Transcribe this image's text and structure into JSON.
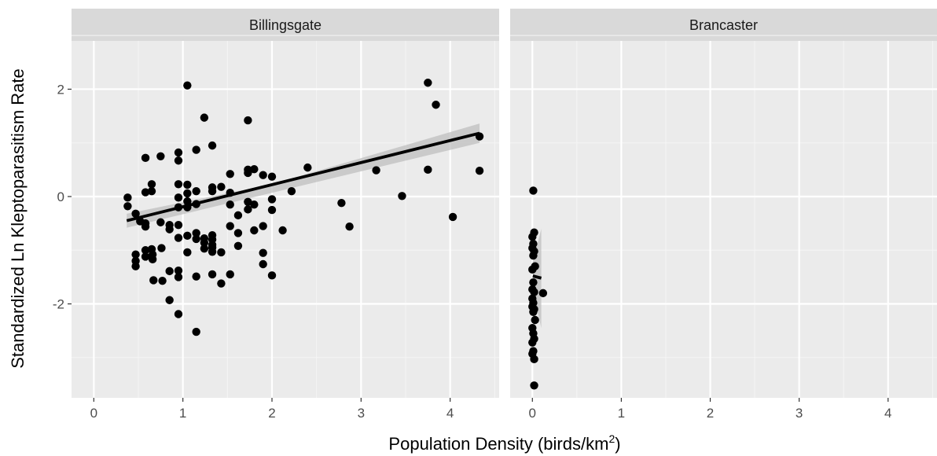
{
  "chart_data": {
    "type": "scatter",
    "facet_by": "site",
    "xlabel": "Population Density (birds/km",
    "xlabel_sup": "2",
    "xlabel_end": ")",
    "ylabel": "Standardized Ln Kleptoparasitism Rate",
    "xlim": [
      -0.25,
      4.55
    ],
    "ylim": [
      -3.75,
      2.9
    ],
    "xticks": [
      0,
      1,
      2,
      3,
      4
    ],
    "xtick_labels": [
      "0",
      "1",
      "2",
      "3",
      "4"
    ],
    "yticks": [
      2,
      0,
      -2
    ],
    "ytick_labels": [
      "2",
      "0",
      "-2"
    ],
    "grid": true,
    "panel_background": "#ebebeb",
    "strip_background": "#d9d9d9",
    "point_color": "#000000",
    "fit_color": "#000000",
    "band_color": "#bfbfbf",
    "panels": [
      {
        "name": "Billingsgate",
        "fit": {
          "x": [
            0.37,
            4.33
          ],
          "y": [
            -0.45,
            1.18
          ]
        },
        "band": {
          "x": [
            0.37,
            2.0,
            4.33
          ],
          "upper": [
            -0.32,
            0.23,
            1.36
          ],
          "lower": [
            -0.58,
            0.07,
            1.0
          ]
        },
        "points": [
          [
            0.38,
            -0.02
          ],
          [
            0.38,
            -0.18
          ],
          [
            0.47,
            -0.32
          ],
          [
            0.47,
            -1.08
          ],
          [
            0.47,
            -1.2
          ],
          [
            0.47,
            -1.3
          ],
          [
            0.52,
            -0.46
          ],
          [
            0.58,
            0.72
          ],
          [
            0.58,
            0.08
          ],
          [
            0.58,
            -0.5
          ],
          [
            0.58,
            -0.56
          ],
          [
            0.58,
            -1.0
          ],
          [
            0.58,
            -1.12
          ],
          [
            0.65,
            0.1
          ],
          [
            0.65,
            0.23
          ],
          [
            0.65,
            -0.98
          ],
          [
            0.66,
            -1.08
          ],
          [
            0.66,
            -1.17
          ],
          [
            0.67,
            -1.56
          ],
          [
            0.75,
            0.75
          ],
          [
            0.75,
            -0.48
          ],
          [
            0.76,
            -0.96
          ],
          [
            0.77,
            -1.57
          ],
          [
            0.85,
            -0.53
          ],
          [
            0.85,
            -0.61
          ],
          [
            0.85,
            -1.39
          ],
          [
            0.85,
            -1.93
          ],
          [
            0.95,
            0.82
          ],
          [
            0.95,
            0.67
          ],
          [
            0.95,
            0.23
          ],
          [
            0.95,
            -0.02
          ],
          [
            0.95,
            -0.2
          ],
          [
            0.95,
            -0.53
          ],
          [
            0.95,
            -0.77
          ],
          [
            0.95,
            -1.38
          ],
          [
            0.95,
            -1.5
          ],
          [
            0.95,
            -2.19
          ],
          [
            1.05,
            2.07
          ],
          [
            1.05,
            0.22
          ],
          [
            1.05,
            0.06
          ],
          [
            1.05,
            -0.09
          ],
          [
            1.05,
            -0.2
          ],
          [
            1.05,
            -0.73
          ],
          [
            1.05,
            -1.04
          ],
          [
            1.15,
            0.87
          ],
          [
            1.15,
            0.1
          ],
          [
            1.15,
            -0.14
          ],
          [
            1.15,
            -0.68
          ],
          [
            1.15,
            -0.79
          ],
          [
            1.15,
            -1.49
          ],
          [
            1.15,
            -2.52
          ],
          [
            1.24,
            1.47
          ],
          [
            1.24,
            -0.78
          ],
          [
            1.24,
            -0.86
          ],
          [
            1.24,
            -0.97
          ],
          [
            1.33,
            0.95
          ],
          [
            1.33,
            0.17
          ],
          [
            1.33,
            0.1
          ],
          [
            1.33,
            -0.72
          ],
          [
            1.33,
            -0.8
          ],
          [
            1.33,
            -0.9
          ],
          [
            1.33,
            -0.95
          ],
          [
            1.33,
            -1.03
          ],
          [
            1.33,
            -1.45
          ],
          [
            1.43,
            0.18
          ],
          [
            1.43,
            -1.04
          ],
          [
            1.43,
            -1.62
          ],
          [
            1.53,
            0.42
          ],
          [
            1.53,
            0.07
          ],
          [
            1.53,
            -0.15
          ],
          [
            1.53,
            -0.55
          ],
          [
            1.53,
            -1.45
          ],
          [
            1.62,
            -0.35
          ],
          [
            1.62,
            -0.68
          ],
          [
            1.62,
            -0.92
          ],
          [
            1.73,
            1.42
          ],
          [
            1.73,
            0.5
          ],
          [
            1.73,
            0.44
          ],
          [
            1.73,
            -0.1
          ],
          [
            1.73,
            -0.24
          ],
          [
            1.8,
            0.51
          ],
          [
            1.8,
            -0.15
          ],
          [
            1.8,
            -0.63
          ],
          [
            1.9,
            0.4
          ],
          [
            1.9,
            -0.55
          ],
          [
            1.9,
            -1.05
          ],
          [
            1.9,
            -1.26
          ],
          [
            2.0,
            0.37
          ],
          [
            2.0,
            -0.05
          ],
          [
            2.0,
            -0.25
          ],
          [
            2.0,
            -1.47
          ],
          [
            2.12,
            -0.63
          ],
          [
            2.22,
            0.1
          ],
          [
            2.4,
            0.54
          ],
          [
            2.78,
            -0.12
          ],
          [
            2.87,
            -0.56
          ],
          [
            3.17,
            0.49
          ],
          [
            3.46,
            0.01
          ],
          [
            3.75,
            2.12
          ],
          [
            3.75,
            0.5
          ],
          [
            3.84,
            1.71
          ],
          [
            4.03,
            -0.38
          ],
          [
            4.33,
            1.12
          ],
          [
            4.33,
            0.48
          ]
        ]
      },
      {
        "name": "Brancaster",
        "fit": {
          "x": [
            0.005,
            0.1
          ],
          "y": [
            -1.48,
            -1.52
          ]
        },
        "band": {
          "x": [
            0.005,
            0.1
          ],
          "upper": [
            -1.22,
            -0.6
          ],
          "lower": [
            -1.75,
            -2.45
          ]
        },
        "points": [
          [
            0.01,
            0.11
          ],
          [
            0.02,
            -0.67
          ],
          [
            0.0,
            -0.75
          ],
          [
            0.01,
            -0.88
          ],
          [
            0.0,
            -0.96
          ],
          [
            0.02,
            -1.02
          ],
          [
            0.01,
            -1.1
          ],
          [
            0.03,
            -1.3
          ],
          [
            0.0,
            -1.36
          ],
          [
            0.01,
            -1.6
          ],
          [
            0.0,
            -1.73
          ],
          [
            0.02,
            -1.78
          ],
          [
            0.12,
            -1.8
          ],
          [
            0.0,
            -1.9
          ],
          [
            0.01,
            -1.98
          ],
          [
            0.0,
            -2.05
          ],
          [
            0.02,
            -2.1
          ],
          [
            0.01,
            -2.15
          ],
          [
            0.03,
            -2.3
          ],
          [
            0.0,
            -2.45
          ],
          [
            0.01,
            -2.55
          ],
          [
            0.02,
            -2.65
          ],
          [
            0.0,
            -2.72
          ],
          [
            0.01,
            -2.88
          ],
          [
            0.0,
            -2.93
          ],
          [
            0.02,
            -3.03
          ],
          [
            0.02,
            -3.52
          ]
        ]
      }
    ]
  }
}
